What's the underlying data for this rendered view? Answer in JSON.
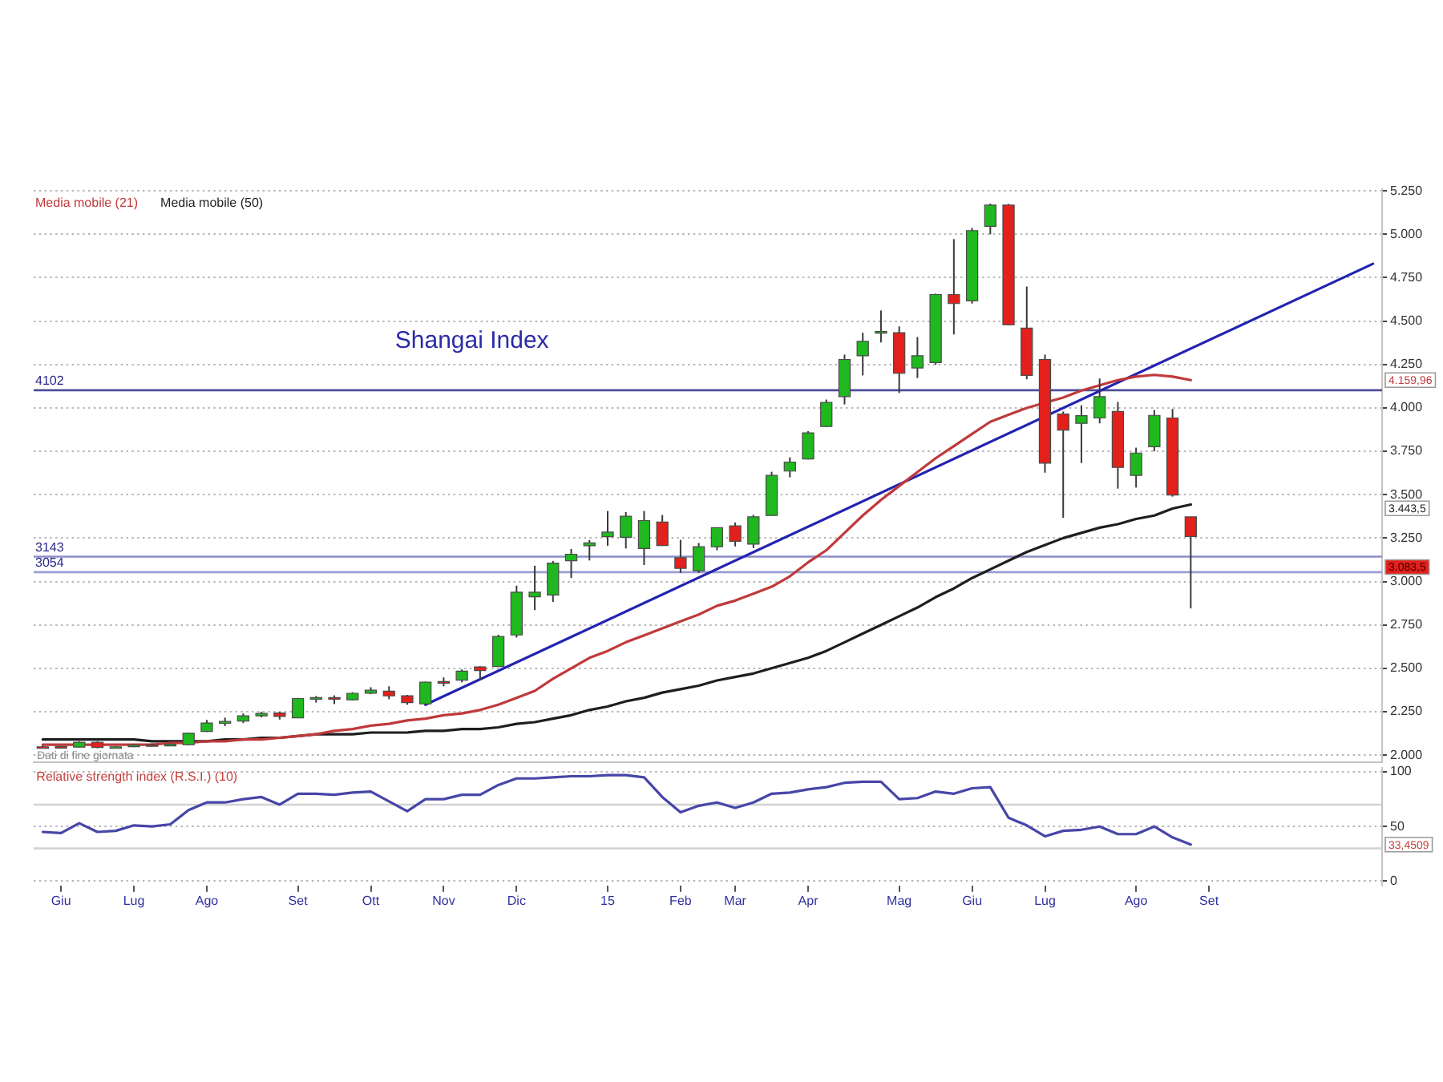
{
  "chart_data": [
    {
      "type": "candlestick",
      "title": "Shangai Index",
      "categories": [
        null,
        null,
        null,
        null,
        null,
        null,
        null,
        null,
        null,
        null,
        null,
        null,
        null,
        null,
        null,
        null,
        null,
        null,
        null,
        null,
        null,
        null,
        null,
        null,
        null,
        null,
        null,
        null,
        null,
        null,
        null,
        null,
        null,
        null,
        null,
        null,
        null,
        null,
        null,
        null,
        null,
        null,
        null,
        null,
        null,
        null,
        null,
        null,
        null,
        null,
        null,
        null,
        null,
        null,
        null,
        null,
        null,
        null,
        null,
        null,
        null,
        null,
        null,
        null,
        null,
        null,
        null,
        null,
        null,
        null,
        null,
        null,
        null,
        null
      ],
      "ohlc": [
        [
          2048,
          2056,
          2041,
          2044
        ],
        [
          2050,
          2054,
          2040,
          2044
        ],
        [
          2046,
          2080,
          2044,
          2074
        ],
        [
          2074,
          2080,
          2040,
          2044
        ],
        [
          2044,
          2052,
          2042,
          2048
        ],
        [
          2050,
          2062,
          2046,
          2058
        ],
        [
          2060,
          2068,
          2050,
          2056
        ],
        [
          2058,
          2068,
          2052,
          2062
        ],
        [
          2060,
          2130,
          2056,
          2126
        ],
        [
          2136,
          2203,
          2133,
          2185
        ],
        [
          2183,
          2216,
          2167,
          2194
        ],
        [
          2196,
          2240,
          2185,
          2226
        ],
        [
          2226,
          2249,
          2217,
          2240
        ],
        [
          2242,
          2250,
          2205,
          2223
        ],
        [
          2215,
          2330,
          2213,
          2326
        ],
        [
          2326,
          2340,
          2303,
          2331
        ],
        [
          2331,
          2344,
          2294,
          2329
        ],
        [
          2319,
          2362,
          2315,
          2356
        ],
        [
          2357,
          2391,
          2351,
          2374
        ],
        [
          2368,
          2396,
          2322,
          2341
        ],
        [
          2342,
          2347,
          2290,
          2302
        ],
        [
          2295,
          2423,
          2290,
          2420
        ],
        [
          2424,
          2447,
          2397,
          2418
        ],
        [
          2432,
          2494,
          2419,
          2484
        ],
        [
          2508,
          2512,
          2431,
          2487
        ],
        [
          2510,
          2693,
          2510,
          2683
        ],
        [
          2692,
          2976,
          2677,
          2938
        ],
        [
          2912,
          3091,
          2835,
          2938
        ],
        [
          2922,
          3118,
          2882,
          3106
        ],
        [
          3120,
          3187,
          3020,
          3157
        ],
        [
          3206,
          3239,
          3121,
          3222
        ],
        [
          3258,
          3406,
          3206,
          3285
        ],
        [
          3255,
          3400,
          3190,
          3376
        ],
        [
          3190,
          3406,
          3095,
          3351
        ],
        [
          3342,
          3383,
          3205,
          3207
        ],
        [
          3137,
          3240,
          3050,
          3076
        ],
        [
          3062,
          3222,
          3049,
          3200
        ],
        [
          3200,
          3311,
          3180,
          3310
        ],
        [
          3320,
          3340,
          3202,
          3232
        ],
        [
          3215,
          3384,
          3193,
          3372
        ],
        [
          3380,
          3632,
          3380,
          3611
        ],
        [
          3636,
          3715,
          3600,
          3688
        ],
        [
          3706,
          3866,
          3703,
          3856
        ],
        [
          3893,
          4048,
          3890,
          4031
        ],
        [
          4065,
          4307,
          4020,
          4279
        ],
        [
          4300,
          4433,
          4187,
          4383
        ],
        [
          4438,
          4561,
          4377,
          4440
        ],
        [
          4433,
          4469,
          4086,
          4200
        ],
        [
          4230,
          4408,
          4172,
          4300
        ],
        [
          4261,
          4658,
          4249,
          4653
        ],
        [
          4653,
          4972,
          4423,
          4601
        ],
        [
          4617,
          5036,
          4601,
          5021
        ],
        [
          5046,
          5177,
          5000,
          5168
        ],
        [
          5168,
          5175,
          4476,
          4479
        ],
        [
          4460,
          4699,
          4165,
          4187
        ],
        [
          4279,
          4307,
          3627,
          3682
        ],
        [
          3964,
          3979,
          3367,
          3872
        ],
        [
          3911,
          4015,
          3682,
          3955
        ],
        [
          3942,
          4169,
          3911,
          4065
        ],
        [
          3979,
          4034,
          3535,
          3657
        ],
        [
          3611,
          3771,
          3541,
          3740
        ],
        [
          3776,
          3988,
          3750,
          3957
        ],
        [
          3942,
          3994,
          3489,
          3498
        ],
        [
          3372,
          3372,
          2845,
          3259
        ],
        null,
        null,
        null,
        null,
        null,
        null,
        null,
        null,
        null,
        null
      ],
      "colors": [
        "#e3201b",
        "#e3201b",
        "#1fb81f",
        "#e3201b",
        "#1fb81f",
        "#1fb81f",
        "#e3201b",
        "#1fb81f",
        "#1fb81f",
        "#1fb81f",
        "#1fb81f",
        "#1fb81f",
        "#1fb81f",
        "#e3201b",
        "#1fb81f",
        "#1fb81f",
        "#e3201b",
        "#1fb81f",
        "#1fb81f",
        "#e3201b",
        "#e3201b",
        "#1fb81f",
        "#e3201b",
        "#1fb81f",
        "#e3201b",
        "#1fb81f",
        "#1fb81f",
        "#1fb81f",
        "#1fb81f",
        "#1fb81f",
        "#1fb81f",
        "#1fb81f",
        "#1fb81f",
        "#1fb81f",
        "#e3201b",
        "#e3201b",
        "#1fb81f",
        "#1fb81f",
        "#e3201b",
        "#1fb81f",
        "#1fb81f",
        "#1fb81f",
        "#1fb81f",
        "#1fb81f",
        "#1fb81f",
        "#1fb81f",
        "#1fb81f",
        "#e3201b",
        "#1fb81f",
        "#1fb81f",
        "#e3201b",
        "#1fb81f",
        "#1fb81f",
        "#e3201b",
        "#e3201b",
        "#e3201b",
        "#e3201b",
        "#1fb81f",
        "#1fb81f",
        "#e3201b",
        "#1fb81f",
        "#1fb81f",
        "#e3201b",
        "#e3201b",
        null,
        null,
        null,
        null,
        null,
        null,
        null,
        null,
        null,
        null
      ],
      "series": [
        {
          "name": "Media mobile (21)",
          "type": "line",
          "color": "#c0393b",
          "values": [
            2060,
            2060,
            2060,
            2060,
            2060,
            2060,
            2060,
            2070,
            2070,
            2080,
            2080,
            2090,
            2090,
            2100,
            2110,
            2120,
            2140,
            2150,
            2170,
            2180,
            2200,
            2210,
            2230,
            2240,
            2260,
            2290,
            2330,
            2370,
            2440,
            2500,
            2560,
            2600,
            2650,
            2690,
            2730,
            2770,
            2810,
            2860,
            2890,
            2930,
            2970,
            3030,
            3110,
            3180,
            3280,
            3380,
            3470,
            3550,
            3630,
            3710,
            3780,
            3850,
            3920,
            3960,
            4000,
            4030,
            4060,
            4100,
            4130,
            4160,
            4180,
            4190,
            4180,
            4159.96,
            null,
            null,
            null,
            null,
            null,
            null,
            null,
            null,
            null,
            null
          ]
        },
        {
          "name": "Media mobile (50)",
          "type": "line",
          "color": "#1e1e1e",
          "values": [
            2090,
            2090,
            2090,
            2090,
            2090,
            2090,
            2080,
            2080,
            2080,
            2080,
            2090,
            2090,
            2100,
            2100,
            2110,
            2120,
            2120,
            2120,
            2130,
            2130,
            2130,
            2140,
            2140,
            2150,
            2150,
            2160,
            2180,
            2190,
            2210,
            2230,
            2260,
            2280,
            2310,
            2330,
            2360,
            2380,
            2400,
            2430,
            2450,
            2470,
            2500,
            2530,
            2560,
            2600,
            2650,
            2700,
            2750,
            2800,
            2850,
            2910,
            2960,
            3020,
            3070,
            3120,
            3170,
            3210,
            3250,
            3280,
            3310,
            3330,
            3360,
            3380,
            3420,
            3443.5,
            null,
            null,
            null,
            null,
            null,
            null,
            null,
            null,
            null,
            null
          ]
        },
        {
          "type": "line",
          "color": "#2323b0",
          "values": [
            null,
            null,
            null,
            null,
            null,
            null,
            null,
            null,
            null,
            null,
            null,
            null,
            null,
            null,
            null,
            null,
            null,
            null,
            null,
            null,
            null,
            2290,
            null,
            null,
            null,
            null,
            null,
            null,
            null,
            null,
            null,
            null,
            null,
            null,
            null,
            null,
            null,
            null,
            null,
            null,
            null,
            null,
            null,
            null,
            null,
            null,
            null,
            null,
            null,
            null,
            null,
            null,
            null,
            null,
            null,
            null,
            null,
            null,
            null,
            null,
            null,
            null,
            null,
            null,
            null,
            null,
            null,
            null,
            null,
            null,
            null,
            null,
            null,
            4830
          ]
        }
      ],
      "ylim": [
        1960,
        5260
      ],
      "yticks": [
        {
          "value": 2000,
          "label": "2.000"
        },
        {
          "value": 2250,
          "label": "2.250"
        },
        {
          "value": 2500,
          "label": "2.500"
        },
        {
          "value": 2750,
          "label": "2.750"
        },
        {
          "value": 3000,
          "label": "3.000"
        },
        {
          "value": 3250,
          "label": "3.250"
        },
        {
          "value": 3500,
          "label": "3.500"
        },
        {
          "value": 3750,
          "label": "3.750"
        },
        {
          "value": 4000,
          "label": "4.000"
        },
        {
          "value": 4250,
          "label": "4.250"
        },
        {
          "value": 4500,
          "label": "4.500"
        },
        {
          "value": 4750,
          "label": "4.750"
        },
        {
          "value": 5000,
          "label": "5.000"
        },
        {
          "value": 5250,
          "label": "5.250"
        }
      ],
      "ref_lines": [
        {
          "axis": "y",
          "value": 4102,
          "label": "4102",
          "color": "#4e4e9c"
        },
        {
          "axis": "y",
          "value": 3143,
          "label": "3143",
          "color": "#8c8cc8"
        },
        {
          "axis": "y",
          "value": 3054,
          "label": "3054",
          "color": "#9c9cd6"
        }
      ],
      "annotations": [
        "Dati di fine giornata",
        {
          "text": "3.083,5",
          "y": 3083.5
        },
        "4.159,96",
        "3.443,5"
      ],
      "grid": "y",
      "legend": "top left"
    },
    {
      "type": "line",
      "title": "Relative strength index (R.S.I.) (10)",
      "categories": [
        null,
        "Giu",
        null,
        null,
        null,
        "Lug",
        null,
        null,
        null,
        "Ago",
        null,
        null,
        null,
        null,
        "Set",
        null,
        null,
        null,
        "Ott",
        null,
        null,
        null,
        "Nov",
        null,
        null,
        null,
        "Dic",
        null,
        null,
        null,
        null,
        "15",
        null,
        null,
        null,
        "Feb",
        null,
        null,
        "Mar",
        null,
        null,
        null,
        "Apr",
        null,
        null,
        null,
        null,
        "Mag",
        null,
        null,
        null,
        "Giu",
        null,
        null,
        null,
        "Lug",
        null,
        null,
        null,
        null,
        "Ago",
        null,
        null,
        null,
        "Set",
        null,
        null,
        null,
        null,
        null,
        null,
        null,
        null,
        null
      ],
      "series": [
        {
          "color": "#4646a8",
          "values": [
            45,
            44,
            53,
            45,
            46,
            51,
            50,
            52,
            65,
            72,
            72,
            75,
            77,
            70,
            80,
            80,
            79,
            81,
            82,
            73,
            64,
            75,
            75,
            79,
            79,
            88,
            94,
            94,
            95,
            96,
            96,
            97,
            97,
            95,
            77,
            63,
            69,
            72,
            67,
            72,
            80,
            81,
            84,
            86,
            90,
            91,
            91,
            75,
            76,
            82,
            80,
            85,
            86,
            58,
            51,
            41,
            46,
            47,
            50,
            43,
            43,
            50,
            40,
            33.4509,
            null,
            null,
            null,
            null,
            null,
            null,
            null,
            null,
            null,
            null
          ]
        }
      ],
      "ylim": [
        -4,
        104
      ],
      "yticks": [
        0,
        50,
        100
      ],
      "ref_lines": [
        {
          "axis": "y",
          "value": 70,
          "color": "#d2d2d2"
        },
        {
          "axis": "y",
          "value": 30,
          "color": "#d2d2d2"
        }
      ],
      "annotations": [
        {
          "text": "33,4509",
          "y": 33.4509
        }
      ],
      "grid": "y"
    }
  ]
}
